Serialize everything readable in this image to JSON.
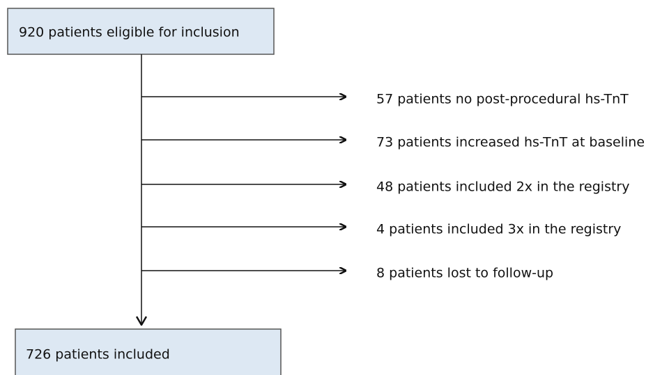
{
  "top_box": {
    "label": "920 patients eligible for inclusion"
  },
  "exclusions": [
    {
      "label": "57 patients no post-procedural hs-TnT"
    },
    {
      "label": "73 patients increased hs-TnT at baseline"
    },
    {
      "label": "48 patients included 2x in the registry"
    },
    {
      "label": "4 patients included 3x in the registry"
    },
    {
      "label": "8 patients lost to follow-up"
    }
  ],
  "bottom_box": {
    "label": "726 patients included"
  }
}
